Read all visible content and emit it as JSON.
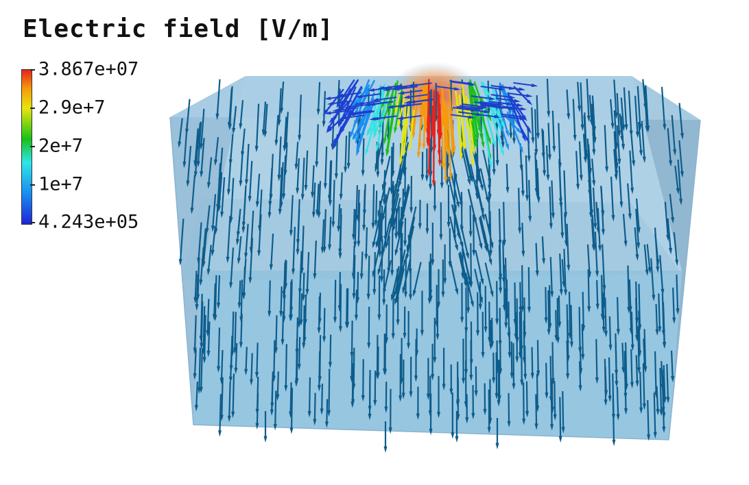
{
  "title": "Electric field [V/m]",
  "colorbar": {
    "labels": [
      "3.867e+07",
      "2.9e+7",
      "2e+7",
      "1e+7",
      "4.243e+05"
    ],
    "max": 38670000,
    "min": 424300,
    "colormap": [
      "#1f24d6",
      "#1b8ef0",
      "#2ee6e6",
      "#19c01b",
      "#e6e60c",
      "#f59a0c",
      "#e8221c"
    ]
  },
  "colors": {
    "box_fill": "#9ec5e0",
    "box_edge": "#7aa6c6",
    "arrow": "#0d5c8c"
  }
}
